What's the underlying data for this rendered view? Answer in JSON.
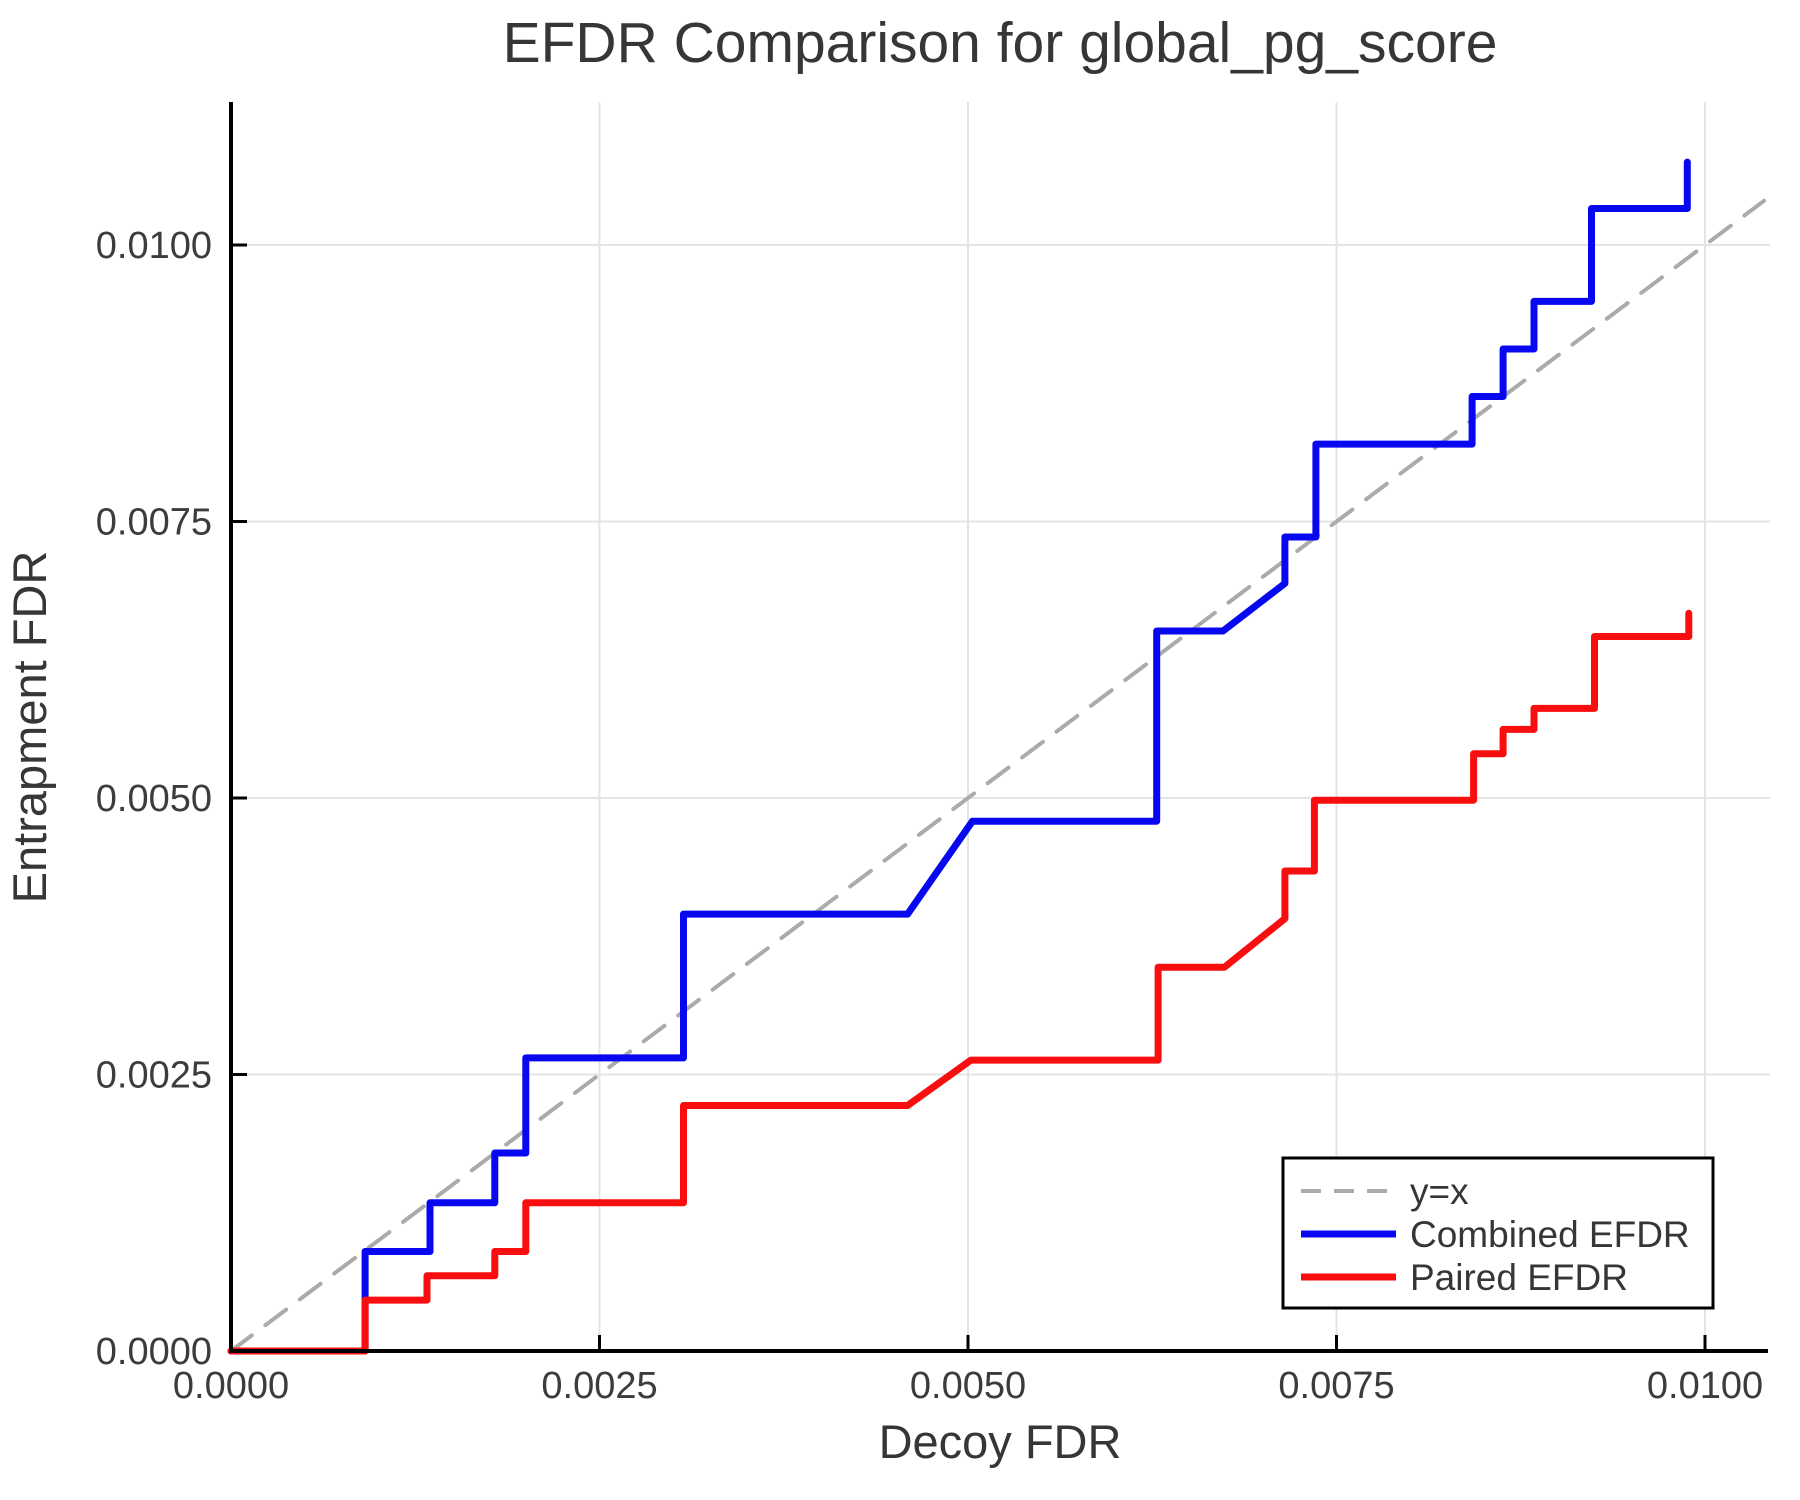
{
  "colors": {
    "background": "#ffffff",
    "grid": "#e4e4e4",
    "spine": "#000000",
    "text": "#363636",
    "tick_text": "#3c3c3c",
    "identity_line": "#ababab",
    "combined": "#0808f0",
    "paired": "#f80e0e"
  },
  "chart_data": {
    "type": "line",
    "title": "EFDR Comparison for global_pg_score",
    "xlabel": "Decoy FDR",
    "ylabel": "Entrapment FDR",
    "xlim": [
      0,
      0.010436
    ],
    "ylim": [
      0,
      0.011297
    ],
    "grid": true,
    "legend_position": "lower right",
    "x_tick_values": [
      0.0,
      0.0025,
      0.005,
      0.0075,
      0.01
    ],
    "x_tick_labels": [
      "0.0000",
      "0.0025",
      "0.0050",
      "0.0075",
      "0.0100"
    ],
    "y_tick_values": [
      0.0,
      0.0025,
      0.005,
      0.0075,
      0.01
    ],
    "y_tick_labels": [
      "0.0000",
      "0.0025",
      "0.0050",
      "0.0075",
      "0.0100"
    ],
    "series": [
      {
        "name": "y=x",
        "color": "#ababab",
        "dashed": true,
        "width": 4,
        "points": [
          [
            0,
            0
          ],
          [
            0.0104,
            0.0104
          ]
        ]
      },
      {
        "name": "Combined EFDR",
        "color": "#0808f0",
        "dashed": false,
        "width": 7,
        "points": [
          [
            0,
            0
          ],
          [
            0.00091,
            0
          ],
          [
            0.00091,
            0.0009
          ],
          [
            0.00135,
            0.0009
          ],
          [
            0.00135,
            0.00134
          ],
          [
            0.00179,
            0.00134
          ],
          [
            0.00179,
            0.00179
          ],
          [
            0.002,
            0.00179
          ],
          [
            0.002,
            0.00265
          ],
          [
            0.00307,
            0.00265
          ],
          [
            0.00307,
            0.00395
          ],
          [
            0.00459,
            0.00395
          ],
          [
            0.00503,
            0.00479
          ],
          [
            0.00628,
            0.00479
          ],
          [
            0.00628,
            0.00651
          ],
          [
            0.00673,
            0.00651
          ],
          [
            0.00715,
            0.00694
          ],
          [
            0.00715,
            0.00736
          ],
          [
            0.00736,
            0.00736
          ],
          [
            0.00736,
            0.0082
          ],
          [
            0.00842,
            0.0082
          ],
          [
            0.00842,
            0.00863
          ],
          [
            0.00863,
            0.00863
          ],
          [
            0.00863,
            0.00906
          ],
          [
            0.00884,
            0.00906
          ],
          [
            0.00884,
            0.00949
          ],
          [
            0.00923,
            0.00949
          ],
          [
            0.00923,
            0.01033
          ],
          [
            0.00988,
            0.01033
          ],
          [
            0.00988,
            0.01075
          ]
        ]
      },
      {
        "name": "Paired EFDR",
        "color": "#f80e0e",
        "dashed": false,
        "width": 7,
        "points": [
          [
            0,
            0
          ],
          [
            0.00091,
            0
          ],
          [
            0.00091,
            0.00046
          ],
          [
            0.00133,
            0.00046
          ],
          [
            0.00133,
            0.00068
          ],
          [
            0.00179,
            0.00068
          ],
          [
            0.00179,
            0.0009
          ],
          [
            0.002,
            0.0009
          ],
          [
            0.002,
            0.00134
          ],
          [
            0.00307,
            0.00134
          ],
          [
            0.00307,
            0.00222
          ],
          [
            0.00459,
            0.00222
          ],
          [
            0.00502,
            0.00263
          ],
          [
            0.00629,
            0.00263
          ],
          [
            0.00629,
            0.00347
          ],
          [
            0.00674,
            0.00347
          ],
          [
            0.00715,
            0.00391
          ],
          [
            0.00715,
            0.00434
          ],
          [
            0.00735,
            0.00434
          ],
          [
            0.00735,
            0.00498
          ],
          [
            0.00843,
            0.00498
          ],
          [
            0.00843,
            0.0054
          ],
          [
            0.00863,
            0.0054
          ],
          [
            0.00863,
            0.00562
          ],
          [
            0.00884,
            0.00562
          ],
          [
            0.00884,
            0.00581
          ],
          [
            0.00925,
            0.00581
          ],
          [
            0.00925,
            0.00646
          ],
          [
            0.00989,
            0.00646
          ],
          [
            0.00989,
            0.00667
          ]
        ]
      }
    ]
  }
}
